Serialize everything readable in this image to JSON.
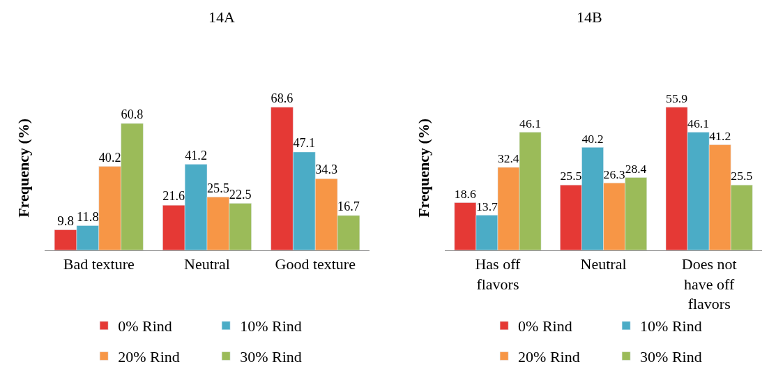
{
  "chart_data": [
    {
      "type": "bar",
      "title": "14A",
      "ylabel": "Frequency (%)",
      "categories": [
        "Bad texture",
        "Neutral",
        "Good texture"
      ],
      "data_labels": true,
      "tick_labels": "x",
      "legend": "bottom",
      "series": [
        {
          "name": "0% Rind",
          "color": "#e53935",
          "values": [
            9.8,
            21.6,
            68.6
          ]
        },
        {
          "name": "10% Rind",
          "color": "#4bacc6",
          "values": [
            11.8,
            41.2,
            47.1
          ]
        },
        {
          "name": "20% Rind",
          "color": "#f79646",
          "values": [
            40.2,
            25.5,
            34.3
          ]
        },
        {
          "name": "30% Rind",
          "color": "#9bbb59",
          "values": [
            60.8,
            22.5,
            16.7
          ]
        }
      ]
    },
    {
      "type": "bar",
      "title": "14B",
      "ylabel": "Frequency (%)",
      "categories": [
        "Has off flavors",
        "Neutral",
        "Does not have off flavors"
      ],
      "data_labels": true,
      "tick_labels": "x",
      "legend": "bottom",
      "series": [
        {
          "name": "0% Rind",
          "color": "#e53935",
          "values": [
            18.6,
            25.5,
            55.9
          ]
        },
        {
          "name": "10% Rind",
          "color": "#4bacc6",
          "values": [
            13.7,
            40.2,
            46.1
          ]
        },
        {
          "name": "20% Rind",
          "color": "#f79646",
          "values": [
            32.4,
            26.3,
            41.2
          ]
        },
        {
          "name": "30% Rind",
          "color": "#9bbb59",
          "values": [
            46.1,
            28.4,
            25.5
          ]
        }
      ]
    }
  ]
}
